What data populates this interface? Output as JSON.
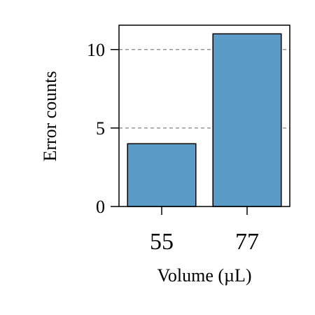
{
  "chart_data": {
    "type": "bar",
    "categories": [
      "55",
      "77"
    ],
    "values": [
      4,
      11
    ],
    "title": "",
    "xlabel": "Volume (µL)",
    "ylabel": "Error counts",
    "ylim": [
      0,
      11.55
    ],
    "yticks": [
      0,
      5,
      10
    ],
    "grid": "horizontal-dashed",
    "legend": "none",
    "colors": {
      "bar_fill": "#5b9bc8",
      "bar_edge": "#000000",
      "grid": "#808080",
      "axis": "#000000"
    }
  }
}
